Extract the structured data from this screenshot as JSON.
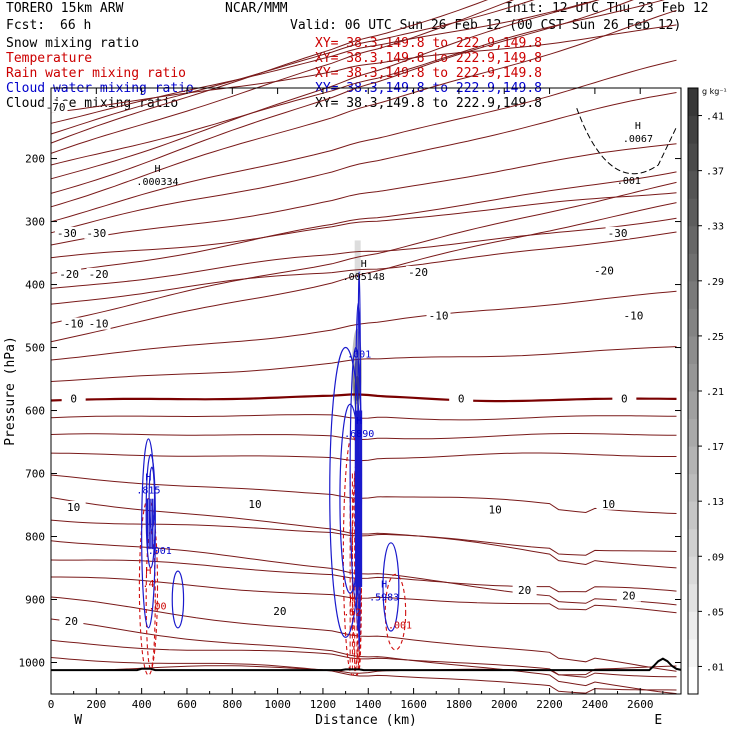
{
  "header": {
    "model": "TORERO  15km ARW",
    "center": "NCAR/MMM",
    "init": "Init: 12 UTC Thu 23 Feb 12",
    "fcst_label": "Fcst:",
    "fcst_value": "66 h",
    "valid": "Valid: 06 UTC Sun 26 Feb 12 (00 CST Sun 26 Feb 12)",
    "fields": [
      {
        "name": "Snow mixing ratio",
        "xy": "XY=  38.3,149.8 to 222.9,149.8",
        "color": "#000000"
      },
      {
        "name": "Temperature",
        "xy": "XY=  38.3,149.8 to 222.9,149.8",
        "color": "#cc0000"
      },
      {
        "name": "Rain water mixing ratio",
        "xy": "XY=  38.3,149.8 to 222.9,149.8",
        "color": "#cc0000"
      },
      {
        "name": "Cloud water mixing ratio",
        "xy": "XY=  38.3,149.8 to 222.9,149.8",
        "color": "#0000cc"
      },
      {
        "name": "Cloud ice mixing ratio",
        "xy": "XY=  38.3,149.8 to 222.9,149.8",
        "color": "#000000"
      }
    ]
  },
  "chart_data": {
    "type": "contour",
    "xlabel": "Distance (km)",
    "ylabel": "Pressure (hPa)",
    "xlim": [
      0,
      2780
    ],
    "ylim": [
      1050,
      100
    ],
    "x_ticks": [
      0,
      200,
      400,
      600,
      800,
      1000,
      1200,
      1400,
      1600,
      1800,
      2000,
      2200,
      2400,
      2600
    ],
    "y_ticks": [
      200,
      300,
      400,
      500,
      600,
      700,
      800,
      900,
      1000
    ],
    "x_end_labels": {
      "left": "W",
      "right": "E"
    },
    "colorbar": {
      "unit": "g kg⁻¹",
      "labels": [
        ".01",
        ".05",
        ".09",
        ".13",
        ".17",
        ".21",
        ".25",
        ".29",
        ".33",
        ".37",
        ".41"
      ]
    },
    "temperature_labels": [
      {
        "x": 20,
        "p": 118,
        "text": "-70"
      },
      {
        "x": 70,
        "p": 318,
        "text": "-30"
      },
      {
        "x": 200,
        "p": 318,
        "text": "-30"
      },
      {
        "x": 2500,
        "p": 318,
        "text": "-30"
      },
      {
        "x": 80,
        "p": 383,
        "text": "-20"
      },
      {
        "x": 210,
        "p": 383,
        "text": "-20"
      },
      {
        "x": 1620,
        "p": 380,
        "text": "-20"
      },
      {
        "x": 2440,
        "p": 378,
        "text": "-20"
      },
      {
        "x": 100,
        "p": 462,
        "text": "-10"
      },
      {
        "x": 210,
        "p": 462,
        "text": "-10"
      },
      {
        "x": 1710,
        "p": 449,
        "text": "-10"
      },
      {
        "x": 2570,
        "p": 449,
        "text": "-10"
      },
      {
        "x": 100,
        "p": 581,
        "text": "0"
      },
      {
        "x": 1810,
        "p": 581,
        "text": "0"
      },
      {
        "x": 2530,
        "p": 581,
        "text": "0"
      },
      {
        "x": 100,
        "p": 753,
        "text": "10"
      },
      {
        "x": 900,
        "p": 748,
        "text": "10"
      },
      {
        "x": 1960,
        "p": 757,
        "text": "10"
      },
      {
        "x": 2460,
        "p": 748,
        "text": "10"
      },
      {
        "x": 1010,
        "p": 918,
        "text": "20"
      },
      {
        "x": 90,
        "p": 934,
        "text": "20"
      },
      {
        "x": 2090,
        "p": 885,
        "text": "20"
      },
      {
        "x": 2550,
        "p": 894,
        "text": "20"
      }
    ],
    "max_labels": [
      {
        "x": 470,
        "p": 237,
        "letter": "H",
        "value": ".000334",
        "color": "#000000"
      },
      {
        "x": 2590,
        "p": 169,
        "letter": "H",
        "value": ".0067",
        "color": "#000000"
      },
      {
        "x": 2550,
        "p": 236,
        "letter": "",
        "value": ".001",
        "color": "#000000"
      },
      {
        "x": 1380,
        "p": 388,
        "letter": "H",
        "value": ".005148",
        "color": "#000000"
      },
      {
        "x": 1360,
        "p": 511,
        "letter": "",
        "value": ".001",
        "color": "#0000cc"
      },
      {
        "x": 1360,
        "p": 637,
        "letter": "H",
        "value": ".6890",
        "color": "#0000cc"
      },
      {
        "x": 430,
        "p": 727,
        "letter": "H",
        "value": ".815",
        "color": "#0000cc"
      },
      {
        "x": 480,
        "p": 823,
        "letter": "",
        "value": ".001",
        "color": "#0000cc"
      },
      {
        "x": 430,
        "p": 875,
        "letter": "H",
        "value": ".4",
        "color": "#cc0000"
      },
      {
        "x": 470,
        "p": 911,
        "letter": "",
        "value": ".00",
        "color": "#cc0000"
      },
      {
        "x": 1330,
        "p": 921,
        "letter": "H",
        "value": ".52",
        "color": "#cc0000"
      },
      {
        "x": 1470,
        "p": 897,
        "letter": "H",
        "value": ".5983",
        "color": "#0000cc"
      },
      {
        "x": 1540,
        "p": 941,
        "letter": "",
        "value": ".001",
        "color": "#cc0000"
      }
    ]
  }
}
